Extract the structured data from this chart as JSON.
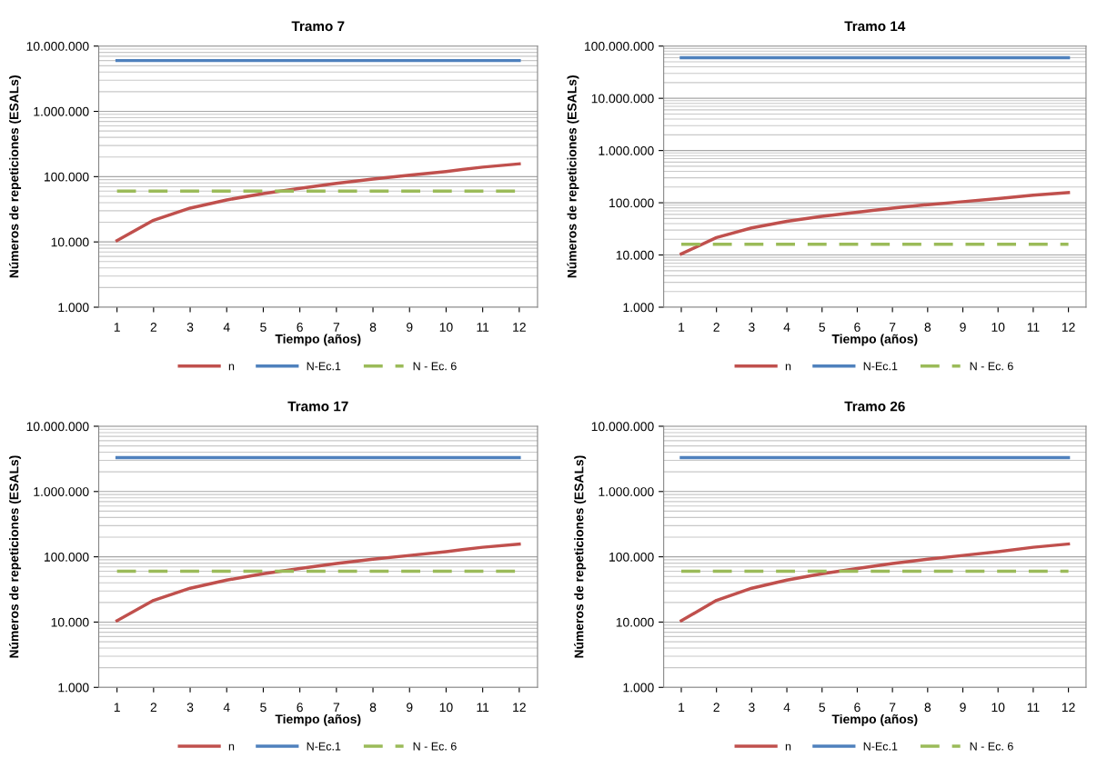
{
  "chart_data": [
    {
      "type": "line",
      "title": "Tramo 7",
      "xlabel": "Tiempo (años)",
      "ylabel": "Números de repeticiones (ESALs)",
      "categories": [
        "1",
        "2",
        "3",
        "4",
        "5",
        "6",
        "7",
        "8",
        "9",
        "10",
        "11",
        "12"
      ],
      "log": true,
      "grid": "y",
      "legend": "bottom",
      "ylim": [
        1000,
        10000000
      ],
      "yticks": [
        {
          "value": 1000,
          "label": "1.000"
        },
        {
          "value": 10000,
          "label": "10.000"
        },
        {
          "value": 100000,
          "label": "100.000"
        },
        {
          "value": 1000000,
          "label": "1.000.000"
        },
        {
          "value": 10000000,
          "label": "10.000.000"
        }
      ],
      "series": [
        {
          "name": "n",
          "color": "#c0504d",
          "line_style": "solid",
          "values": [
            10500,
            21500,
            33000,
            44000,
            55000,
            66000,
            79000,
            92000,
            105000,
            120000,
            140000,
            157000
          ]
        },
        {
          "name": "N-Ec.1",
          "color": "#4f81bd",
          "line_style": "solid",
          "values": [
            6000000,
            6000000,
            6000000,
            6000000,
            6000000,
            6000000,
            6000000,
            6000000,
            6000000,
            6000000,
            6000000,
            6000000
          ]
        },
        {
          "name": "N - Ec. 6",
          "color": "#9bbb59",
          "line_style": "dashed",
          "values": [
            60000,
            60000,
            60000,
            60000,
            60000,
            60000,
            60000,
            60000,
            60000,
            60000,
            60000,
            60000
          ]
        }
      ]
    },
    {
      "type": "line",
      "title": "Tramo 14",
      "xlabel": "Tiempo (años)",
      "ylabel": "Números de repeticiones (ESALs)",
      "categories": [
        "1",
        "2",
        "3",
        "4",
        "5",
        "6",
        "7",
        "8",
        "9",
        "10",
        "11",
        "12"
      ],
      "log": true,
      "grid": "y",
      "legend": "bottom",
      "ylim": [
        1000,
        100000000
      ],
      "yticks": [
        {
          "value": 1000,
          "label": "1.000"
        },
        {
          "value": 10000,
          "label": "10.000"
        },
        {
          "value": 100000,
          "label": "100.000"
        },
        {
          "value": 1000000,
          "label": "1.000.000"
        },
        {
          "value": 10000000,
          "label": "10.000.000"
        },
        {
          "value": 100000000,
          "label": "100.000.000"
        }
      ],
      "series": [
        {
          "name": "n",
          "color": "#c0504d",
          "line_style": "solid",
          "values": [
            10500,
            21500,
            33000,
            44000,
            55000,
            66000,
            79000,
            92000,
            105000,
            120000,
            140000,
            157000
          ]
        },
        {
          "name": "N-Ec.1",
          "color": "#4f81bd",
          "line_style": "solid",
          "values": [
            60000000,
            60000000,
            60000000,
            60000000,
            60000000,
            60000000,
            60000000,
            60000000,
            60000000,
            60000000,
            60000000,
            60000000
          ]
        },
        {
          "name": "N - Ec. 6",
          "color": "#9bbb59",
          "line_style": "dashed",
          "values": [
            16000,
            16000,
            16000,
            16000,
            16000,
            16000,
            16000,
            16000,
            16000,
            16000,
            16000,
            16000
          ]
        }
      ]
    },
    {
      "type": "line",
      "title": "Tramo 17",
      "xlabel": "Tiempo (años)",
      "ylabel": "Números de repeticiones (ESALs)",
      "categories": [
        "1",
        "2",
        "3",
        "4",
        "5",
        "6",
        "7",
        "8",
        "9",
        "10",
        "11",
        "12"
      ],
      "log": true,
      "grid": "y",
      "legend": "bottom",
      "ylim": [
        1000,
        10000000
      ],
      "yticks": [
        {
          "value": 1000,
          "label": "1.000"
        },
        {
          "value": 10000,
          "label": "10.000"
        },
        {
          "value": 100000,
          "label": "100.000"
        },
        {
          "value": 1000000,
          "label": "1.000.000"
        },
        {
          "value": 10000000,
          "label": "10.000.000"
        }
      ],
      "series": [
        {
          "name": "n",
          "color": "#c0504d",
          "line_style": "solid",
          "values": [
            10500,
            21500,
            33000,
            44000,
            55000,
            66000,
            79000,
            92000,
            105000,
            120000,
            140000,
            157000
          ]
        },
        {
          "name": "N-Ec.1",
          "color": "#4f81bd",
          "line_style": "solid",
          "values": [
            3300000,
            3300000,
            3300000,
            3300000,
            3300000,
            3300000,
            3300000,
            3300000,
            3300000,
            3300000,
            3300000,
            3300000
          ]
        },
        {
          "name": "N - Ec. 6",
          "color": "#9bbb59",
          "line_style": "dashed",
          "values": [
            60000,
            60000,
            60000,
            60000,
            60000,
            60000,
            60000,
            60000,
            60000,
            60000,
            60000,
            60000
          ]
        }
      ]
    },
    {
      "type": "line",
      "title": "Tramo 26",
      "xlabel": "Tiempo (años)",
      "ylabel": "Números de repeticiones (ESALs)",
      "categories": [
        "1",
        "2",
        "3",
        "4",
        "5",
        "6",
        "7",
        "8",
        "9",
        "10",
        "11",
        "12"
      ],
      "log": true,
      "grid": "y",
      "legend": "bottom",
      "ylim": [
        1000,
        10000000
      ],
      "yticks": [
        {
          "value": 1000,
          "label": "1.000"
        },
        {
          "value": 10000,
          "label": "10.000"
        },
        {
          "value": 100000,
          "label": "100.000"
        },
        {
          "value": 1000000,
          "label": "1.000.000"
        },
        {
          "value": 10000000,
          "label": "10.000.000"
        }
      ],
      "series": [
        {
          "name": "n",
          "color": "#c0504d",
          "line_style": "solid",
          "values": [
            10500,
            21500,
            33000,
            44000,
            55000,
            66000,
            79000,
            92000,
            105000,
            120000,
            140000,
            157000
          ]
        },
        {
          "name": "N-Ec.1",
          "color": "#4f81bd",
          "line_style": "solid",
          "values": [
            3300000,
            3300000,
            3300000,
            3300000,
            3300000,
            3300000,
            3300000,
            3300000,
            3300000,
            3300000,
            3300000,
            3300000
          ]
        },
        {
          "name": "N - Ec. 6",
          "color": "#9bbb59",
          "line_style": "dashed",
          "values": [
            60000,
            60000,
            60000,
            60000,
            60000,
            60000,
            60000,
            60000,
            60000,
            60000,
            60000,
            60000
          ]
        }
      ]
    }
  ]
}
